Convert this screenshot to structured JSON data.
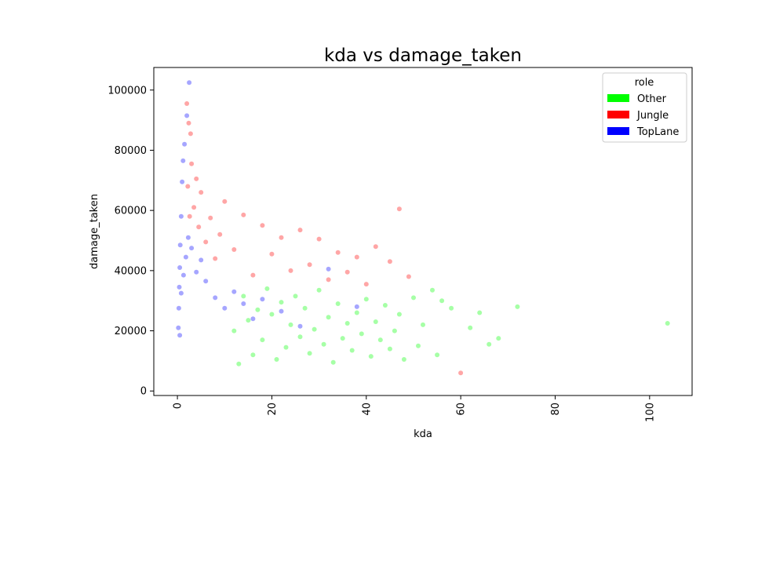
{
  "chart_data": {
    "type": "scatter",
    "title": "kda vs damage_taken",
    "xlabel": "kda",
    "ylabel": "damage_taken",
    "xlim": [
      -5,
      109
    ],
    "ylim": [
      -1500,
      107500
    ],
    "xticks": [
      0,
      20,
      40,
      60,
      80,
      100
    ],
    "yticks": [
      0,
      20000,
      40000,
      60000,
      80000,
      100000
    ],
    "grid": false,
    "legend": {
      "title": "role",
      "placement": "top-right",
      "entries": [
        "Other",
        "Jungle",
        "TopLane"
      ]
    },
    "point_alpha": 0.08,
    "series": [
      {
        "name": "Other",
        "color": "#00ff00",
        "points": [
          [
            103.8,
            22500
          ],
          [
            72,
            28000
          ],
          [
            68,
            17500
          ],
          [
            66,
            15500
          ],
          [
            64,
            26000
          ],
          [
            62,
            21000
          ],
          [
            58,
            27500
          ],
          [
            56,
            30000
          ],
          [
            55,
            12000
          ],
          [
            54,
            33500
          ],
          [
            52,
            22000
          ],
          [
            51,
            15000
          ],
          [
            50,
            31000
          ],
          [
            48,
            10500
          ],
          [
            47,
            25500
          ],
          [
            46,
            20000
          ],
          [
            45,
            14000
          ],
          [
            44,
            28500
          ],
          [
            43,
            17000
          ],
          [
            42,
            23000
          ],
          [
            41,
            11500
          ],
          [
            40,
            30500
          ],
          [
            39,
            19000
          ],
          [
            38,
            26000
          ],
          [
            37,
            13500
          ],
          [
            36,
            22500
          ],
          [
            35,
            17500
          ],
          [
            34,
            29000
          ],
          [
            33,
            9500
          ],
          [
            32,
            24500
          ],
          [
            31,
            15500
          ],
          [
            30,
            33500
          ],
          [
            29,
            20500
          ],
          [
            28,
            12500
          ],
          [
            27,
            27500
          ],
          [
            26,
            18000
          ],
          [
            25,
            31500
          ],
          [
            24,
            22000
          ],
          [
            23,
            14500
          ],
          [
            22,
            29500
          ],
          [
            21,
            10500
          ],
          [
            20,
            25500
          ],
          [
            19,
            34000
          ],
          [
            18,
            17000
          ],
          [
            17,
            27000
          ],
          [
            16,
            12000
          ],
          [
            15,
            23500
          ],
          [
            14,
            31500
          ],
          [
            13,
            9000
          ],
          [
            12,
            20000
          ]
        ]
      },
      {
        "name": "Jungle",
        "color": "#ff0000",
        "points": [
          [
            47,
            60500
          ],
          [
            60,
            6000
          ],
          [
            49,
            38000
          ],
          [
            45,
            43000
          ],
          [
            42,
            48000
          ],
          [
            40,
            35500
          ],
          [
            38,
            44500
          ],
          [
            36,
            39500
          ],
          [
            34,
            46000
          ],
          [
            32,
            37000
          ],
          [
            30,
            50500
          ],
          [
            28,
            42000
          ],
          [
            26,
            53500
          ],
          [
            24,
            40000
          ],
          [
            22,
            51000
          ],
          [
            20,
            45500
          ],
          [
            18,
            55000
          ],
          [
            16,
            38500
          ],
          [
            14,
            58500
          ],
          [
            12,
            47000
          ],
          [
            10,
            63000
          ],
          [
            9,
            52000
          ],
          [
            8,
            44000
          ],
          [
            7,
            57500
          ],
          [
            6,
            49500
          ],
          [
            5,
            66000
          ],
          [
            4.5,
            54500
          ],
          [
            4,
            70500
          ],
          [
            3.5,
            61000
          ],
          [
            3,
            75500
          ],
          [
            2.8,
            85500
          ],
          [
            2.6,
            58000
          ],
          [
            2.4,
            89000
          ],
          [
            2.2,
            68000
          ],
          [
            2,
            95500
          ]
        ]
      },
      {
        "name": "TopLane",
        "color": "#0000ff",
        "points": [
          [
            2.5,
            102500
          ],
          [
            2,
            91500
          ],
          [
            1.5,
            82000
          ],
          [
            1.2,
            76500
          ],
          [
            1,
            69500
          ],
          [
            0.8,
            58000
          ],
          [
            0.6,
            48500
          ],
          [
            0.5,
            41000
          ],
          [
            0.4,
            34500
          ],
          [
            0.3,
            27500
          ],
          [
            0.2,
            21000
          ],
          [
            0.5,
            18500
          ],
          [
            0.8,
            32500
          ],
          [
            1.3,
            38500
          ],
          [
            1.8,
            44500
          ],
          [
            2.3,
            51000
          ],
          [
            3,
            47500
          ],
          [
            4,
            39500
          ],
          [
            5,
            43500
          ],
          [
            6,
            36500
          ],
          [
            8,
            31000
          ],
          [
            10,
            27500
          ],
          [
            12,
            33000
          ],
          [
            14,
            29000
          ],
          [
            16,
            24000
          ],
          [
            18,
            30500
          ],
          [
            22,
            26500
          ],
          [
            26,
            21500
          ],
          [
            32,
            40500
          ],
          [
            38,
            28000
          ]
        ]
      }
    ]
  }
}
